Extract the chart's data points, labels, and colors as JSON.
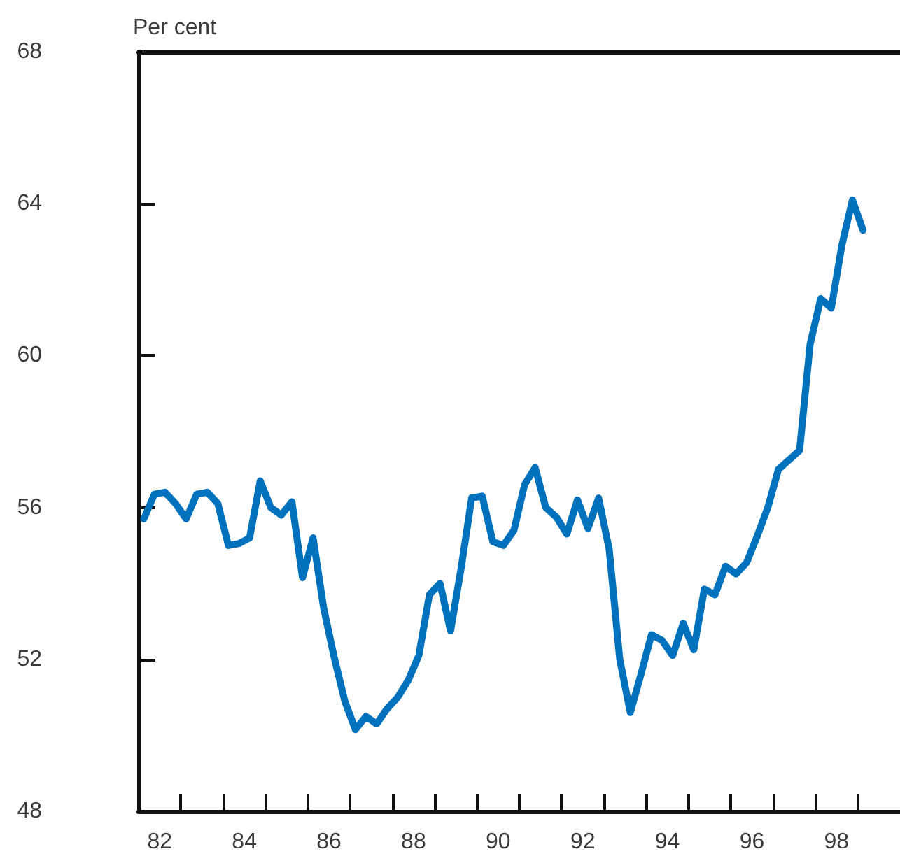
{
  "chart_data": {
    "type": "line",
    "ylabel": "Per cent",
    "x": [
      81.625,
      81.875,
      82.125,
      82.375,
      82.625,
      82.875,
      83.125,
      83.375,
      83.625,
      83.875,
      84.125,
      84.375,
      84.625,
      84.875,
      85.125,
      85.375,
      85.625,
      85.875,
      86.125,
      86.375,
      86.625,
      86.875,
      87.125,
      87.375,
      87.625,
      87.875,
      88.125,
      88.375,
      88.625,
      88.875,
      89.125,
      89.375,
      89.625,
      89.875,
      90.125,
      90.375,
      90.625,
      90.875,
      91.125,
      91.375,
      91.625,
      91.875,
      92.125,
      92.375,
      92.625,
      92.875,
      93.125,
      93.375,
      93.625,
      93.875,
      94.125,
      94.375,
      94.625,
      94.875,
      95.125,
      95.375,
      95.625,
      95.875,
      96.125,
      96.375,
      96.625,
      96.875,
      97.125,
      97.375,
      97.625,
      97.875,
      98.125,
      98.375,
      98.625
    ],
    "series": [
      {
        "color": "#0071bc",
        "values": [
          55.7,
          56.35,
          56.4,
          56.1,
          55.7,
          56.35,
          56.4,
          56.1,
          55.0,
          55.05,
          55.2,
          56.7,
          56.0,
          55.8,
          56.15,
          54.15,
          55.2,
          53.35,
          52.05,
          50.9,
          50.15,
          50.5,
          50.3,
          50.7,
          51.0,
          51.45,
          52.1,
          53.7,
          54.0,
          52.75,
          54.4,
          56.25,
          56.3,
          55.1,
          55.0,
          55.4,
          56.6,
          57.05,
          56.0,
          55.75,
          55.3,
          56.2,
          55.45,
          56.25,
          54.9,
          52.0,
          50.6,
          51.6,
          52.65,
          52.5,
          52.1,
          52.95,
          52.25,
          53.85,
          53.7,
          54.45,
          54.25,
          54.55,
          55.25,
          56.0,
          57.0,
          57.25,
          57.5,
          60.3,
          61.5,
          61.25,
          62.9,
          64.1,
          63.3
        ]
      }
    ],
    "xlim": [
      81.5,
      99.5
    ],
    "xticks": [
      82,
      {
        "value": 82.5,
        "label": null
      },
      {
        "value": 83.5,
        "label": null
      },
      84,
      {
        "value": 84.5,
        "label": null
      },
      {
        "value": 85.5,
        "label": null
      },
      86,
      {
        "value": 86.5,
        "label": null
      },
      {
        "value": 87.5,
        "label": null
      },
      88,
      {
        "value": 88.5,
        "label": null
      },
      {
        "value": 89.5,
        "label": null
      },
      90,
      {
        "value": 90.5,
        "label": null
      },
      {
        "value": 91.5,
        "label": null
      },
      92,
      {
        "value": 92.5,
        "label": null
      },
      {
        "value": 93.5,
        "label": null
      },
      94,
      {
        "value": 94.5,
        "label": null
      },
      {
        "value": 95.5,
        "label": null
      },
      96,
      {
        "value": 96.5,
        "label": null
      },
      {
        "value": 97.5,
        "label": null
      },
      98,
      {
        "value": 98.5,
        "label": null
      }
    ],
    "ylim": [
      48,
      68
    ],
    "yticks": [
      48,
      52,
      56,
      60,
      64,
      68
    ],
    "grid": false,
    "marker": "none",
    "line_style": "solid"
  }
}
